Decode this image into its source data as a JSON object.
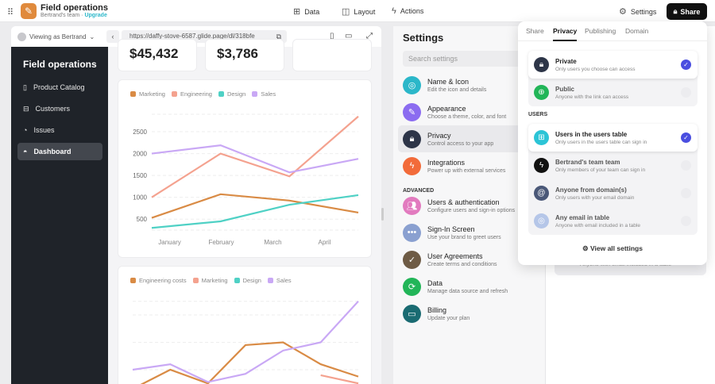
{
  "topbar": {
    "app_title": "Field operations",
    "team": "Bertrand's team",
    "upgrade": "Upgrade",
    "nav": [
      {
        "label": "Data",
        "icon": "table-icon"
      },
      {
        "label": "Layout",
        "icon": "layout-icon"
      },
      {
        "label": "Actions",
        "icon": "lightning-icon"
      }
    ],
    "settings_label": "Settings",
    "share_label": "Share"
  },
  "preview": {
    "viewing_as": "Viewing as Bertrand",
    "url": "https://daffy-stove-6587.glide.page/dl/318bfe",
    "app_name": "Field operations",
    "nav": [
      {
        "label": "Product Catalog",
        "icon": "book-icon"
      },
      {
        "label": "Customers",
        "icon": "inbox-icon"
      },
      {
        "label": "Issues",
        "icon": "pie-icon"
      },
      {
        "label": "Dashboard",
        "icon": "gauge-icon",
        "active": true
      }
    ],
    "kpis": [
      "$45,432",
      "$3,786",
      ""
    ]
  },
  "chart_data": [
    {
      "type": "line",
      "categories": [
        "January",
        "February",
        "March",
        "April"
      ],
      "series": [
        {
          "name": "Marketing",
          "color": "#d98b45",
          "values": [
            530,
            1070,
            925,
            650
          ]
        },
        {
          "name": "Engineering",
          "color": "#f4a28f",
          "values": [
            1000,
            2000,
            1480,
            2850
          ]
        },
        {
          "name": "Design",
          "color": "#4fd1c5",
          "values": [
            300,
            450,
            830,
            1050
          ]
        },
        {
          "name": "Sales",
          "color": "#c9a8f5",
          "values": [
            2000,
            2190,
            1570,
            1880
          ]
        }
      ],
      "yticks": [
        500,
        1000,
        1500,
        2000,
        2500
      ],
      "ylim": [
        250,
        2900
      ],
      "grid": true,
      "legend": "top-left"
    },
    {
      "type": "line",
      "series": [
        {
          "name": "Engineering costs",
          "color": "#d98b45",
          "values": [
            0.3,
            1.0,
            0.5,
            1.9,
            2.0,
            1.2,
            0.75
          ]
        },
        {
          "name": "Marketing",
          "color": "#f4a28f",
          "values": [
            null,
            null,
            null,
            null,
            null,
            0.8,
            0.5
          ]
        },
        {
          "name": "Design",
          "color": "#4fd1c5",
          "values": []
        },
        {
          "name": "Sales",
          "color": "#c9a8f5",
          "values": [
            1.0,
            1.2,
            0.55,
            0.85,
            1.7,
            2.0,
            3.5
          ]
        }
      ],
      "grid": true,
      "legend": "top-left"
    }
  ],
  "settings": {
    "title": "Settings",
    "search_placeholder": "Search settings",
    "advanced_label": "ADVANCED",
    "items": [
      {
        "title": "Name & Icon",
        "sub": "Edit the icon and details",
        "color": "#2bb7c9",
        "glyph": "◎"
      },
      {
        "title": "Appearance",
        "sub": "Choose a theme, color, and font",
        "color": "#8b6cf0",
        "glyph": "✎"
      },
      {
        "title": "Privacy",
        "sub": "Control access to your app",
        "color": "#2d3548",
        "glyph": "🔒︎",
        "active": true
      },
      {
        "title": "Integrations",
        "sub": "Power up with external services",
        "color": "#f26b3a",
        "glyph": "ϟ"
      },
      {
        "title": "Users & authentication",
        "sub": "Configure users and sign-in options",
        "color": "#e27bbf",
        "glyph": "👥︎"
      },
      {
        "title": "Sign-In Screen",
        "sub": "Use your brand to greet users",
        "color": "#8aa0d0",
        "glyph": "•••"
      },
      {
        "title": "User Agreements",
        "sub": "Create terms and conditions",
        "color": "#6e5b45",
        "glyph": "✓"
      },
      {
        "title": "Data",
        "sub": "Manage data source and refresh",
        "color": "#22b558",
        "glyph": "⟳"
      },
      {
        "title": "Billing",
        "sub": "Update your plan",
        "color": "#1a6b72",
        "glyph": "▭"
      }
    ],
    "behind_text": "Anyone with email included in a table"
  },
  "popover": {
    "tabs": [
      "Share",
      "Privacy",
      "Publishing",
      "Domain"
    ],
    "active_tab": "Privacy",
    "access": [
      {
        "title": "Private",
        "sub": "Only users you choose can access",
        "color": "#2d3548",
        "glyph": "🔒︎",
        "selected": true
      },
      {
        "title": "Public",
        "sub": "Anyone with the link can access",
        "color": "#22b558",
        "glyph": "⊕",
        "selected": false
      }
    ],
    "users_label": "USERS",
    "users": [
      {
        "title": "Users in the users table",
        "sub": "Only users in the users table can sign in",
        "color": "#2bc4d6",
        "glyph": "⊞",
        "selected": true
      },
      {
        "title": "Bertrand's team team",
        "sub": "Only members of your team can sign in",
        "color": "#111111",
        "glyph": "ϟ",
        "selected": false
      },
      {
        "title": "Anyone from domain(s)",
        "sub": "Only users with your email domain",
        "color": "#4a5878",
        "glyph": "@",
        "selected": false
      },
      {
        "title": "Any email in table",
        "sub": "Anyone with email included in a table",
        "color": "#b5c6e8",
        "glyph": "◎",
        "selected": false
      }
    ],
    "view_all": "View all settings"
  }
}
